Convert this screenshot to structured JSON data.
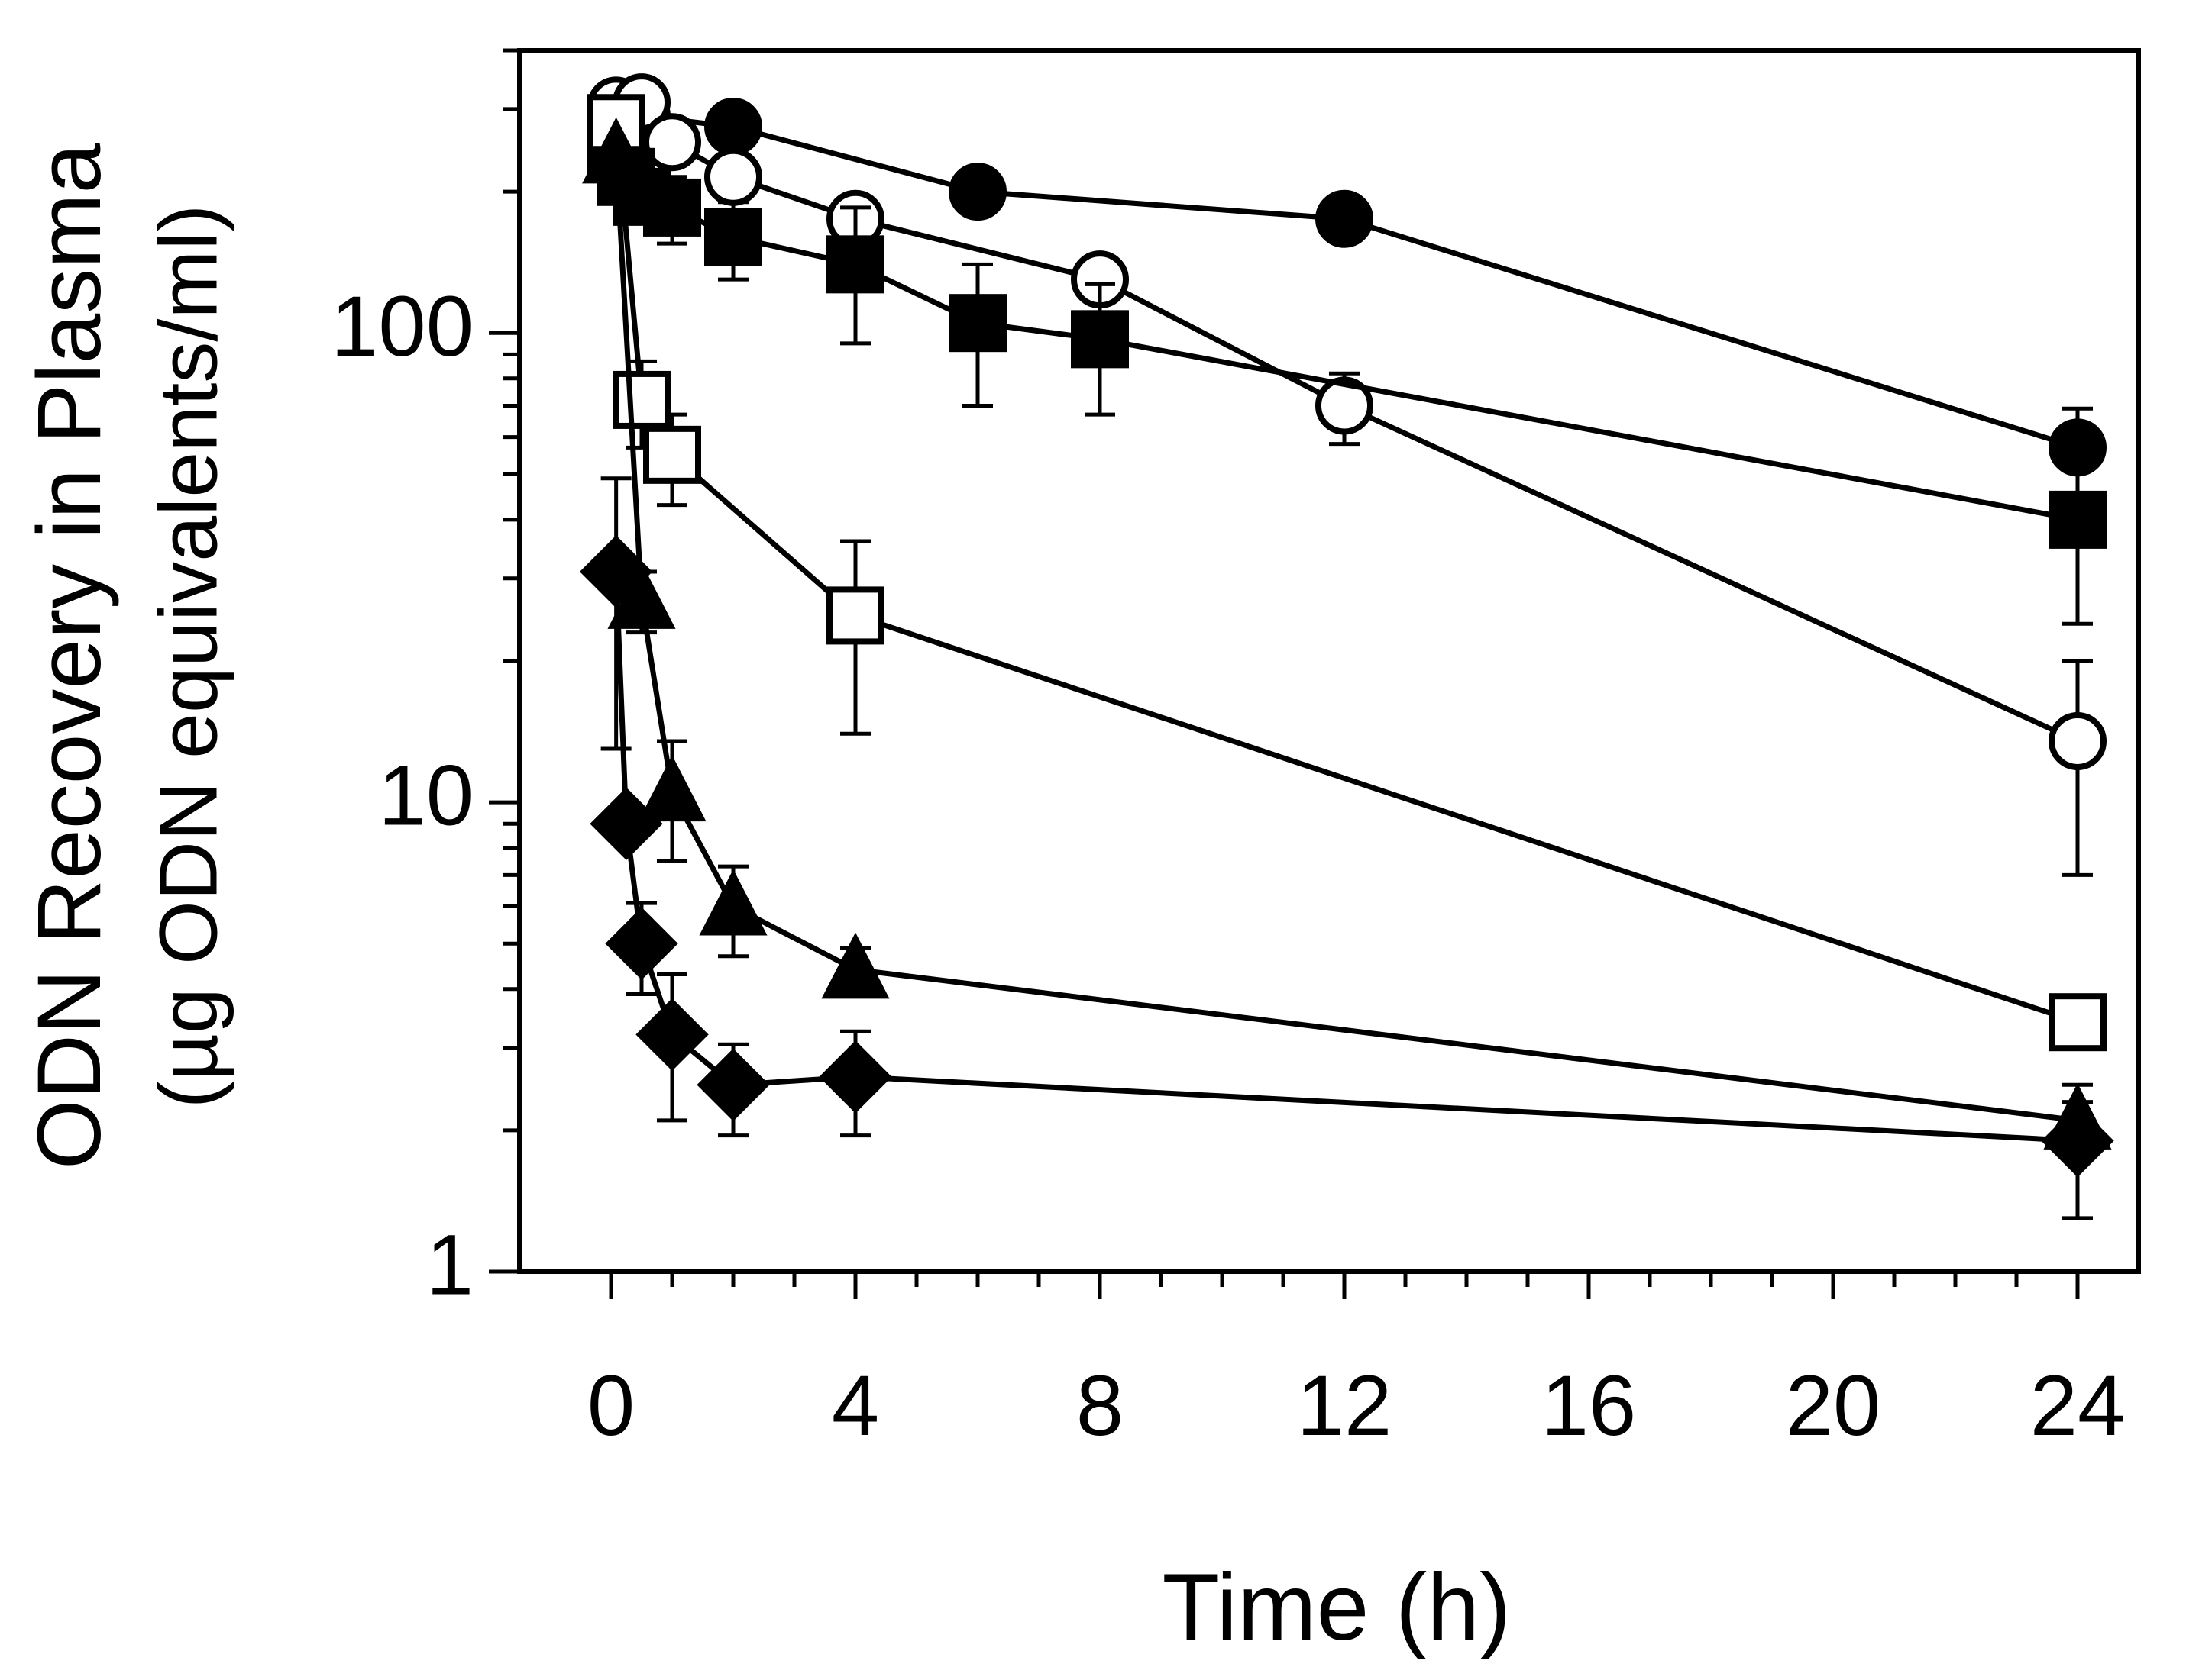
{
  "chart_data": {
    "type": "line",
    "title": "",
    "xlabel": "Time (h)",
    "ylabel_line1": "ODN Recovery in Plasma",
    "ylabel_line2": "(µg ODN equivalents/ml)",
    "xlim": [
      -1.5,
      25
    ],
    "ylim": [
      1,
      400
    ],
    "yscale": "log",
    "grid": false,
    "legend": "none",
    "x_ticks": [
      0,
      4,
      8,
      12,
      16,
      20,
      24
    ],
    "x_tick_labels": [
      "0",
      "4",
      "8",
      "12",
      "16",
      "20",
      "24"
    ],
    "y_ticks": [
      1,
      10,
      100
    ],
    "y_tick_labels": [
      "1",
      "10",
      "100"
    ],
    "series": [
      {
        "name": "filled-circle",
        "marker": "circle",
        "filled": true,
        "x": [
          0.083,
          0.5,
          2,
          6,
          12,
          24
        ],
        "y": [
          295,
          290,
          275,
          200,
          175,
          57
        ],
        "err": [
          0,
          0,
          0,
          0,
          12,
          12
        ]
      },
      {
        "name": "open-circle",
        "marker": "circle",
        "filled": false,
        "x": [
          0.083,
          0.5,
          1,
          2,
          4,
          8,
          12,
          24
        ],
        "y": [
          305,
          310,
          255,
          215,
          175,
          130,
          70,
          13.5
        ],
        "err": [
          0,
          0,
          0,
          0,
          10,
          10,
          12,
          6.5
        ]
      },
      {
        "name": "filled-square",
        "marker": "square",
        "filled": true,
        "x": [
          0.083,
          0.25,
          0.5,
          1,
          2,
          4,
          6,
          8,
          24
        ],
        "y": [
          245,
          215,
          195,
          185,
          160,
          140,
          105,
          97,
          40
        ],
        "err": [
          0,
          0,
          0,
          30,
          30,
          45,
          35,
          30,
          16
        ]
      },
      {
        "name": "open-square",
        "marker": "square",
        "filled": false,
        "x": [
          0.083,
          0.5,
          1,
          4,
          24
        ],
        "y": [
          280,
          72,
          55,
          25,
          3.4
        ],
        "err": [
          0,
          15,
          12,
          11,
          0.4
        ]
      },
      {
        "name": "filled-triangle",
        "marker": "triangle",
        "filled": true,
        "x": [
          0.083,
          0.5,
          1,
          2,
          4,
          24
        ],
        "y": [
          240,
          27,
          10.5,
          6,
          4.4,
          2.1
        ],
        "err": [
          0,
          4,
          3,
          1.3,
          0.5,
          0.2
        ]
      },
      {
        "name": "filled-diamond",
        "marker": "diamond",
        "filled": true,
        "x": [
          0.083,
          0.25,
          0.5,
          1,
          2,
          4,
          24
        ],
        "y": [
          31,
          9,
          5,
          3.2,
          2.5,
          2.6,
          1.9
        ],
        "err": [
          18,
          0,
          1.1,
          1.1,
          0.55,
          0.65,
          0.6
        ]
      }
    ]
  }
}
